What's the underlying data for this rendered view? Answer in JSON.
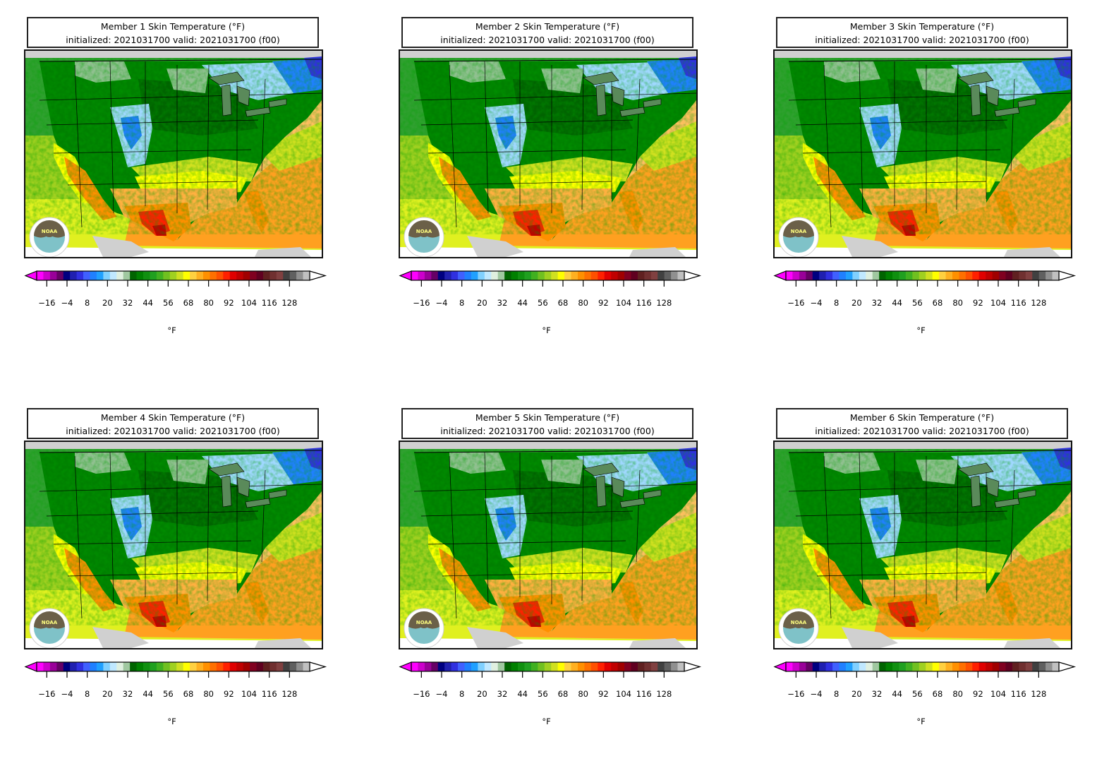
{
  "figure": {
    "panels": [
      {
        "member_title": "Member 1 Skin Temperature (°F)",
        "subtitle": "initialized: 2021031700 valid: 2021031700 (f00)"
      },
      {
        "member_title": "Member 2 Skin Temperature (°F)",
        "subtitle": "initialized: 2021031700 valid: 2021031700 (f00)"
      },
      {
        "member_title": "Member 3 Skin Temperature (°F)",
        "subtitle": "initialized: 2021031700 valid: 2021031700 (f00)"
      },
      {
        "member_title": "Member 4 Skin Temperature (°F)",
        "subtitle": "initialized: 2021031700 valid: 2021031700 (f00)"
      },
      {
        "member_title": "Member 5 Skin Temperature (°F)",
        "subtitle": "initialized: 2021031700 valid: 2021031700 (f00)"
      },
      {
        "member_title": "Member 6 Skin Temperature (°F)",
        "subtitle": "initialized: 2021031700 valid: 2021031700 (f00)"
      }
    ],
    "logo_text": "NOAA",
    "colorbar": {
      "unit_label": "°F",
      "tick_labels": [
        "−16",
        "−4",
        "8",
        "20",
        "32",
        "44",
        "56",
        "68",
        "80",
        "92",
        "104",
        "116",
        "128"
      ],
      "tick_values": [
        -16,
        -4,
        8,
        20,
        32,
        44,
        56,
        68,
        80,
        92,
        104,
        116,
        128
      ],
      "range": [
        -22,
        140
      ],
      "step": 4,
      "extend": "both",
      "colors": [
        "#ff00ff",
        "#cc00cc",
        "#990099",
        "#660066",
        "#000080",
        "#2020b0",
        "#3030e0",
        "#4060ff",
        "#2080ff",
        "#20a0ff",
        "#80d0ff",
        "#c0e8ff",
        "#e0f0e0",
        "#a0c8a0",
        "#006400",
        "#008000",
        "#109010",
        "#20a020",
        "#40b020",
        "#70c020",
        "#a0d020",
        "#d0e020",
        "#ffff00",
        "#ffd040",
        "#ffb020",
        "#ff9000",
        "#ff7000",
        "#ff5000",
        "#ff2000",
        "#e00000",
        "#c00000",
        "#a00000",
        "#800020",
        "#600020",
        "#602020",
        "#703030",
        "#804040",
        "#404040",
        "#606060",
        "#909090",
        "#c0c0c0"
      ]
    },
    "map_colors": {
      "ocean_gulf": "#ffa020",
      "ocean_atlantic_far": "#ffc060",
      "pacific_north": "#30a030",
      "pacific_mid": "#a0d020",
      "pacific_south": "#e0f020",
      "canada_land": "#d0d0d0",
      "forest_green": "#008000",
      "dark_green": "#006400",
      "mid_green": "#40a040",
      "pale_green": "#90c090",
      "light_blue": "#a0d8ff",
      "blue": "#2080ff",
      "deep_blue": "#3030e0",
      "yellow": "#ffff00",
      "yellow_green": "#d0e020",
      "orange": "#ff9000",
      "orange_light": "#ffb040",
      "red": "#ff2000",
      "dark_red": "#c00000"
    }
  }
}
